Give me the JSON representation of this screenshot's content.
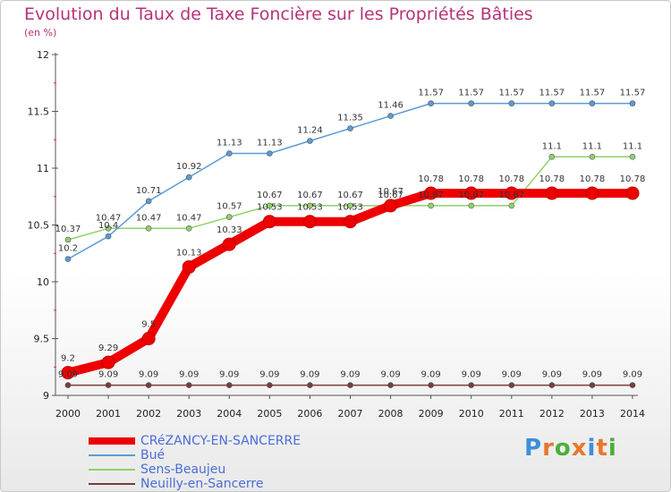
{
  "header": {
    "title": "Evolution du Taux de Taxe Foncière sur les Propriétés Bâties",
    "subtitle": "(en %)"
  },
  "logo": {
    "text": "Proxiti",
    "colors": [
      "#3d8fd8",
      "#e8762c",
      "#4cae3b",
      "#e8762c",
      "#3d8fd8",
      "#e8762c",
      "#4cae3b"
    ]
  },
  "chart_data": {
    "type": "line",
    "title": "Evolution du Taux de Taxe Foncière sur les Propriétés Bâties",
    "ylabel": "(en %)",
    "xlabel": "",
    "x": [
      "2000",
      "2001",
      "2002",
      "2003",
      "2004",
      "2005",
      "2006",
      "2007",
      "2008",
      "2009",
      "2010",
      "2011",
      "2012",
      "2013",
      "2014"
    ],
    "ylim": [
      9,
      12
    ],
    "yticks": [
      "9",
      "9.5",
      "10",
      "10.5",
      "11",
      "11.5",
      "12"
    ],
    "grid": false,
    "legend": "bottom-left",
    "series": [
      {
        "name": "CRéZANCY-EN-SANCERRE",
        "color": "#ee0000",
        "values": [
          9.2,
          9.29,
          9.5,
          10.13,
          10.33,
          10.53,
          10.53,
          10.53,
          10.67,
          10.78,
          10.78,
          10.78,
          10.78,
          10.78,
          10.78
        ],
        "labels": [
          "9.2",
          "9.29",
          "9.5",
          "10.13",
          "10.33",
          "10.53",
          "10.53",
          "10.53",
          "10.67",
          "10.78",
          "10.78",
          "10.78",
          "10.78",
          "10.78",
          "10.78"
        ]
      },
      {
        "name": "Bué",
        "color": "#5b9bd5",
        "values": [
          10.2,
          10.4,
          10.71,
          10.92,
          11.13,
          11.13,
          11.24,
          11.35,
          11.46,
          11.57,
          11.57,
          11.57,
          11.57,
          11.57,
          11.57
        ],
        "labels": [
          "10.2",
          "10.4",
          "10.71",
          "10.92",
          "11.13",
          "11.13",
          "11.24",
          "11.35",
          "11.46",
          "11.57",
          "11.57",
          "11.57",
          "11.57",
          "11.57",
          "11.57"
        ]
      },
      {
        "name": "Sens-Beaujeu",
        "color": "#8fd16a",
        "values": [
          10.37,
          10.47,
          10.47,
          10.47,
          10.57,
          10.67,
          10.67,
          10.67,
          10.67,
          10.67,
          10.67,
          10.67,
          11.1,
          11.1,
          11.1
        ],
        "labels": [
          "10.37",
          "10.47",
          "10.47",
          "10.47",
          "10.57",
          "10.67",
          "10.67",
          "10.67",
          "10.67",
          "10.67",
          "10.67",
          "10.67",
          "11.1",
          "11.1",
          "11.1"
        ]
      },
      {
        "name": "Neuilly-en-Sancerre",
        "color": "#7a3b3b",
        "values": [
          9.09,
          9.09,
          9.09,
          9.09,
          9.09,
          9.09,
          9.09,
          9.09,
          9.09,
          9.09,
          9.09,
          9.09,
          9.09,
          9.09,
          9.09
        ],
        "labels": [
          "9.09",
          "9.09",
          "9.09",
          "9.09",
          "9.09",
          "9.09",
          "9.09",
          "9.09",
          "9.09",
          "9.09",
          "9.09",
          "9.09",
          "9.09",
          "9.09",
          "9.09"
        ]
      }
    ]
  }
}
